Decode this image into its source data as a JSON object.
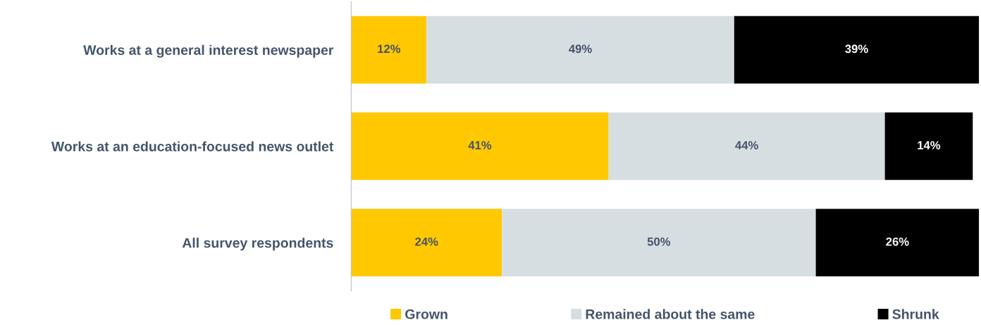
{
  "chart_data": {
    "type": "bar",
    "orientation": "horizontal",
    "stacked": true,
    "categories": [
      "Works at a general interest newspaper",
      "Works at an education-focused news outlet",
      "All survey respondents"
    ],
    "series": [
      {
        "name": "Grown",
        "color": "#ffc800",
        "values": [
          12,
          41,
          24
        ],
        "value_labels": [
          "12%",
          "41%",
          "24%"
        ]
      },
      {
        "name": "Remained about the same",
        "color": "#d6dee2",
        "values": [
          49,
          44,
          50
        ],
        "value_labels": [
          "49%",
          "44%",
          "50%"
        ]
      },
      {
        "name": "Shrunk",
        "color": "#000000",
        "values": [
          39,
          14,
          26
        ],
        "value_labels": [
          "39%",
          "14%",
          "26%"
        ]
      }
    ],
    "legend": "bottom",
    "grid": false
  }
}
